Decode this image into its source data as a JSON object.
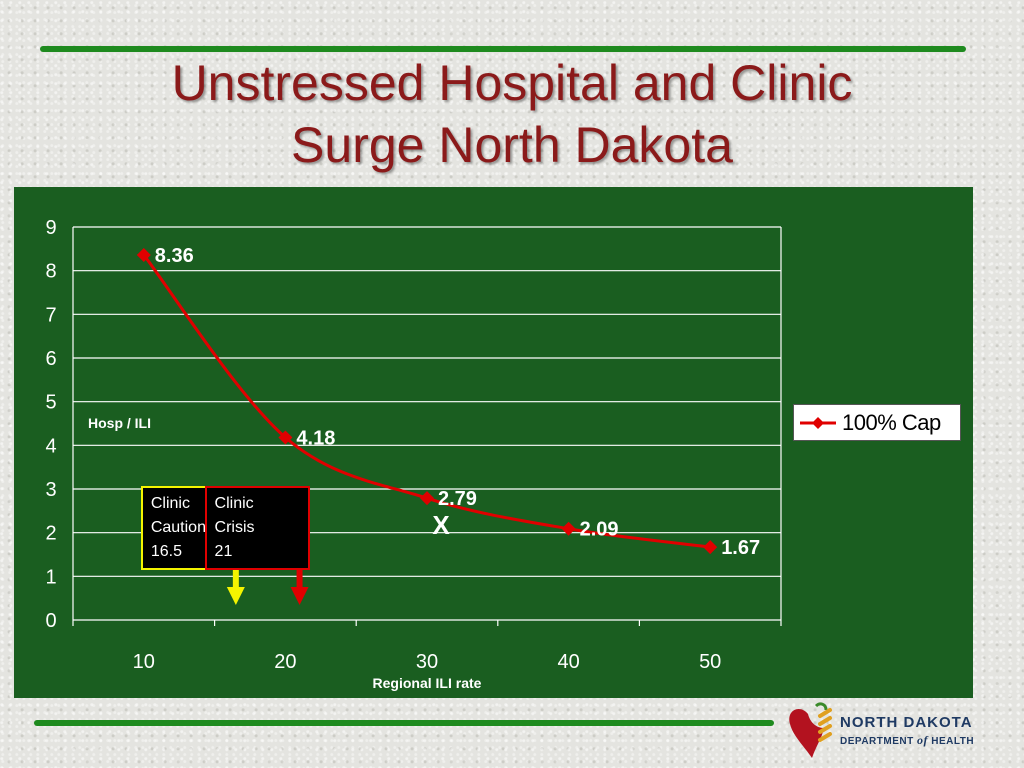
{
  "slide": {
    "title_line1": "Unstressed Hospital and Clinic",
    "title_line2": "Surge North Dakota",
    "colors": {
      "title": "#8b1a1a",
      "rule": "#1e8a1e",
      "panel": "#1a5e20",
      "series": "#e00000",
      "caution": "#f4f400",
      "crisis": "#e00000"
    }
  },
  "chart_data": {
    "type": "line",
    "x": [
      10,
      20,
      30,
      40,
      50
    ],
    "categories": [
      "10",
      "20",
      "30",
      "40",
      "50"
    ],
    "series": [
      {
        "name": "100% Cap",
        "values": [
          8.36,
          4.18,
          2.79,
          2.09,
          1.67
        ],
        "color": "#e00000"
      }
    ],
    "data_labels": [
      "8.36",
      "4.18",
      "2.79",
      "2.09",
      "1.67"
    ],
    "ylim": [
      0,
      9
    ],
    "yticks": [
      "0",
      "1",
      "2",
      "3",
      "4",
      "5",
      "6",
      "7",
      "8",
      "9"
    ],
    "xlabel": "Regional ILI rate",
    "ylabel": "Hosp / ILI",
    "grid": true,
    "legend": "right",
    "annotations": [
      {
        "text": "X",
        "x": 30,
        "y": 2.2
      }
    ],
    "callouts": [
      {
        "lines": [
          "Clinic",
          "Caution",
          "16.5"
        ],
        "x": 16.5,
        "color": "#f4f400"
      },
      {
        "lines": [
          "Clinic",
          "Crisis",
          "21"
        ],
        "x": 21,
        "color": "#e00000"
      }
    ]
  },
  "logo": {
    "line1": "NORTH DAKOTA",
    "line2_a": "DEPARTMENT",
    "line2_b": "of",
    "line2_c": "HEALTH"
  }
}
